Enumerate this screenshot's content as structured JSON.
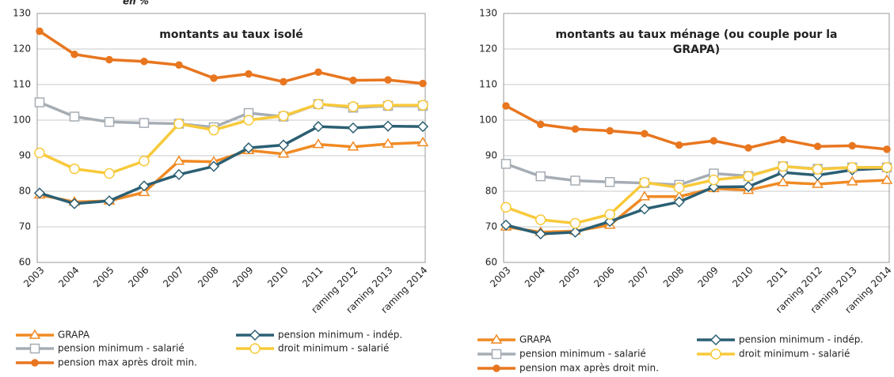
{
  "chart_data": [
    {
      "type": "line",
      "annotation": "en %",
      "title": [
        "montants au taux isolé"
      ],
      "categories": [
        "2003",
        "2004",
        "2005",
        "2006",
        "2007",
        "2008",
        "2009",
        "2010",
        "2011",
        "raming 2012",
        "raming 2013",
        "raming 2014"
      ],
      "ylim": [
        60,
        130
      ],
      "yticks": [
        60,
        70,
        80,
        90,
        100,
        110,
        120,
        130
      ],
      "grid": true,
      "series": [
        {
          "name": "GRAPA",
          "color": "#f08a24",
          "marker": "triangle",
          "values": [
            79,
            77,
            77.3,
            79.7,
            88.5,
            88.3,
            91.5,
            90.5,
            93.2,
            92.5,
            93.3,
            93.7
          ]
        },
        {
          "name": "pension minimum - indép.",
          "color": "#2b5f73",
          "marker": "diamond",
          "values": [
            79.5,
            76.5,
            77.3,
            81.5,
            84.7,
            87,
            92.2,
            93,
            98.2,
            97.8,
            98.3,
            98.2
          ]
        },
        {
          "name": "pension minimum - salarié",
          "color": "#a6adb4",
          "marker": "square",
          "values": [
            105,
            101,
            99.5,
            99.2,
            99,
            98,
            102,
            101,
            104.5,
            103.5,
            104,
            104
          ]
        },
        {
          "name": "droit minimum - salarié",
          "color": "#f8c93a",
          "marker": "circle",
          "values": [
            90.8,
            86.3,
            85,
            88.5,
            99,
            97.2,
            100,
            101.2,
            104.5,
            103.8,
            104.2,
            104.2
          ]
        },
        {
          "name": "pension max après droit min.",
          "color": "#e8761f",
          "marker": "dot",
          "values": [
            125,
            118.5,
            117,
            116.5,
            115.5,
            111.8,
            113,
            110.8,
            113.5,
            111.2,
            111.3,
            110.3
          ]
        }
      ]
    },
    {
      "type": "line",
      "title": [
        "montants au taux ménage (ou couple pour la",
        "GRAPA)"
      ],
      "categories": [
        "2003",
        "2004",
        "2005",
        "2006",
        "2007",
        "2008",
        "2009",
        "2010",
        "2011",
        "raming 2012",
        "raming 2013",
        "raming 2014"
      ],
      "ylim": [
        60,
        130
      ],
      "yticks": [
        60,
        70,
        80,
        90,
        100,
        110,
        120,
        130
      ],
      "grid": true,
      "series": [
        {
          "name": "GRAPA",
          "color": "#f08a24",
          "marker": "triangle",
          "values": [
            70,
            68.5,
            68.8,
            70.5,
            78.5,
            78.5,
            80.8,
            80.3,
            82.5,
            82,
            82.7,
            83.1
          ]
        },
        {
          "name": "pension minimum - indép.",
          "color": "#2b5f73",
          "marker": "diamond",
          "values": [
            70.5,
            68,
            68.5,
            71.5,
            75,
            77,
            81.2,
            81.3,
            85.3,
            84.5,
            86,
            86.5
          ]
        },
        {
          "name": "pension minimum - salarié",
          "color": "#a6adb4",
          "marker": "square",
          "values": [
            87.7,
            84.2,
            83,
            82.6,
            82.3,
            81.8,
            85,
            84.3,
            87,
            86.3,
            86.7,
            86.7
          ]
        },
        {
          "name": "droit minimum - salarié",
          "color": "#f8c93a",
          "marker": "circle",
          "values": [
            75.5,
            72,
            71,
            73.5,
            82.5,
            81,
            83.2,
            84.2,
            87,
            86.2,
            86.7,
            86.7
          ]
        },
        {
          "name": "pension max après droit min.",
          "color": "#e8761f",
          "marker": "dot",
          "values": [
            104,
            98.8,
            97.5,
            97,
            96.2,
            93,
            94.2,
            92.2,
            94.5,
            92.6,
            92.8,
            91.8
          ]
        }
      ]
    }
  ]
}
